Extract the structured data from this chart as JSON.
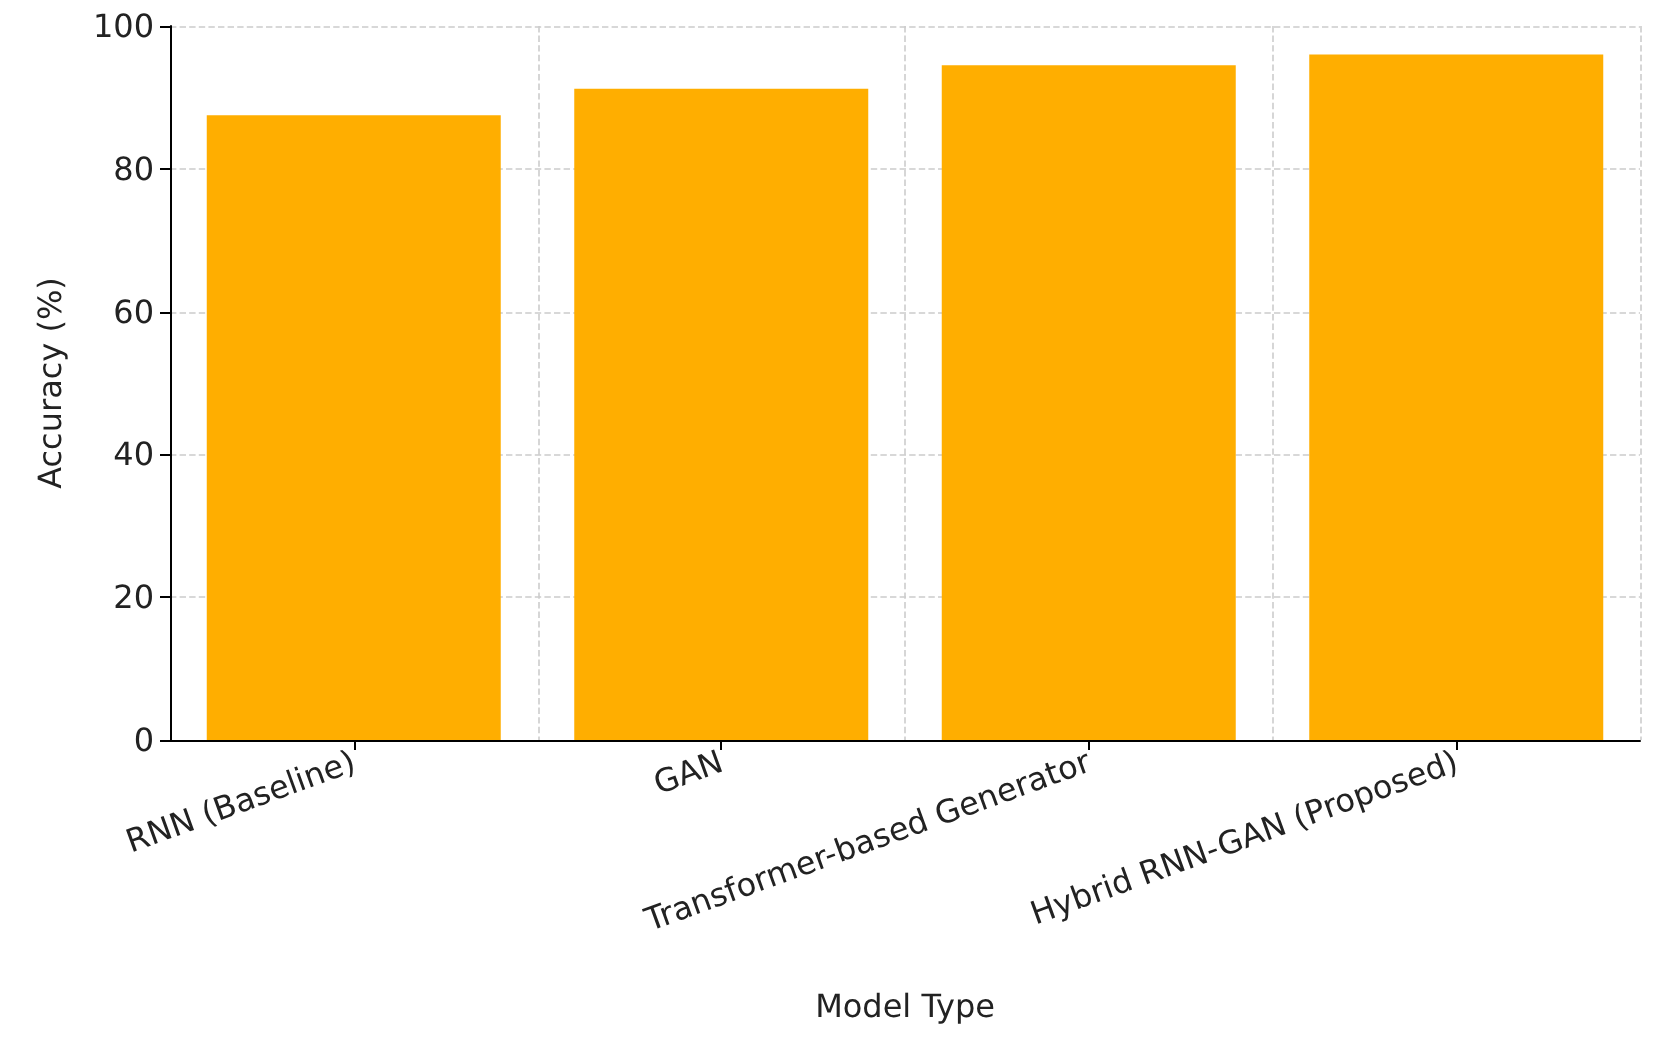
{
  "chart_data": {
    "type": "bar",
    "xlabel": "Model Type",
    "ylabel": "Accuracy (%)",
    "categories": [
      "RNN (Baseline)",
      "GAN",
      "Transformer-based Generator",
      "Hybrid RNN-GAN (Proposed)"
    ],
    "values": [
      87.5,
      91.2,
      94.5,
      96
    ],
    "color": "#ffae00",
    "ylim": [
      0,
      100
    ],
    "yticks": [
      0,
      20,
      40,
      60,
      80,
      100
    ],
    "grid": true
  }
}
